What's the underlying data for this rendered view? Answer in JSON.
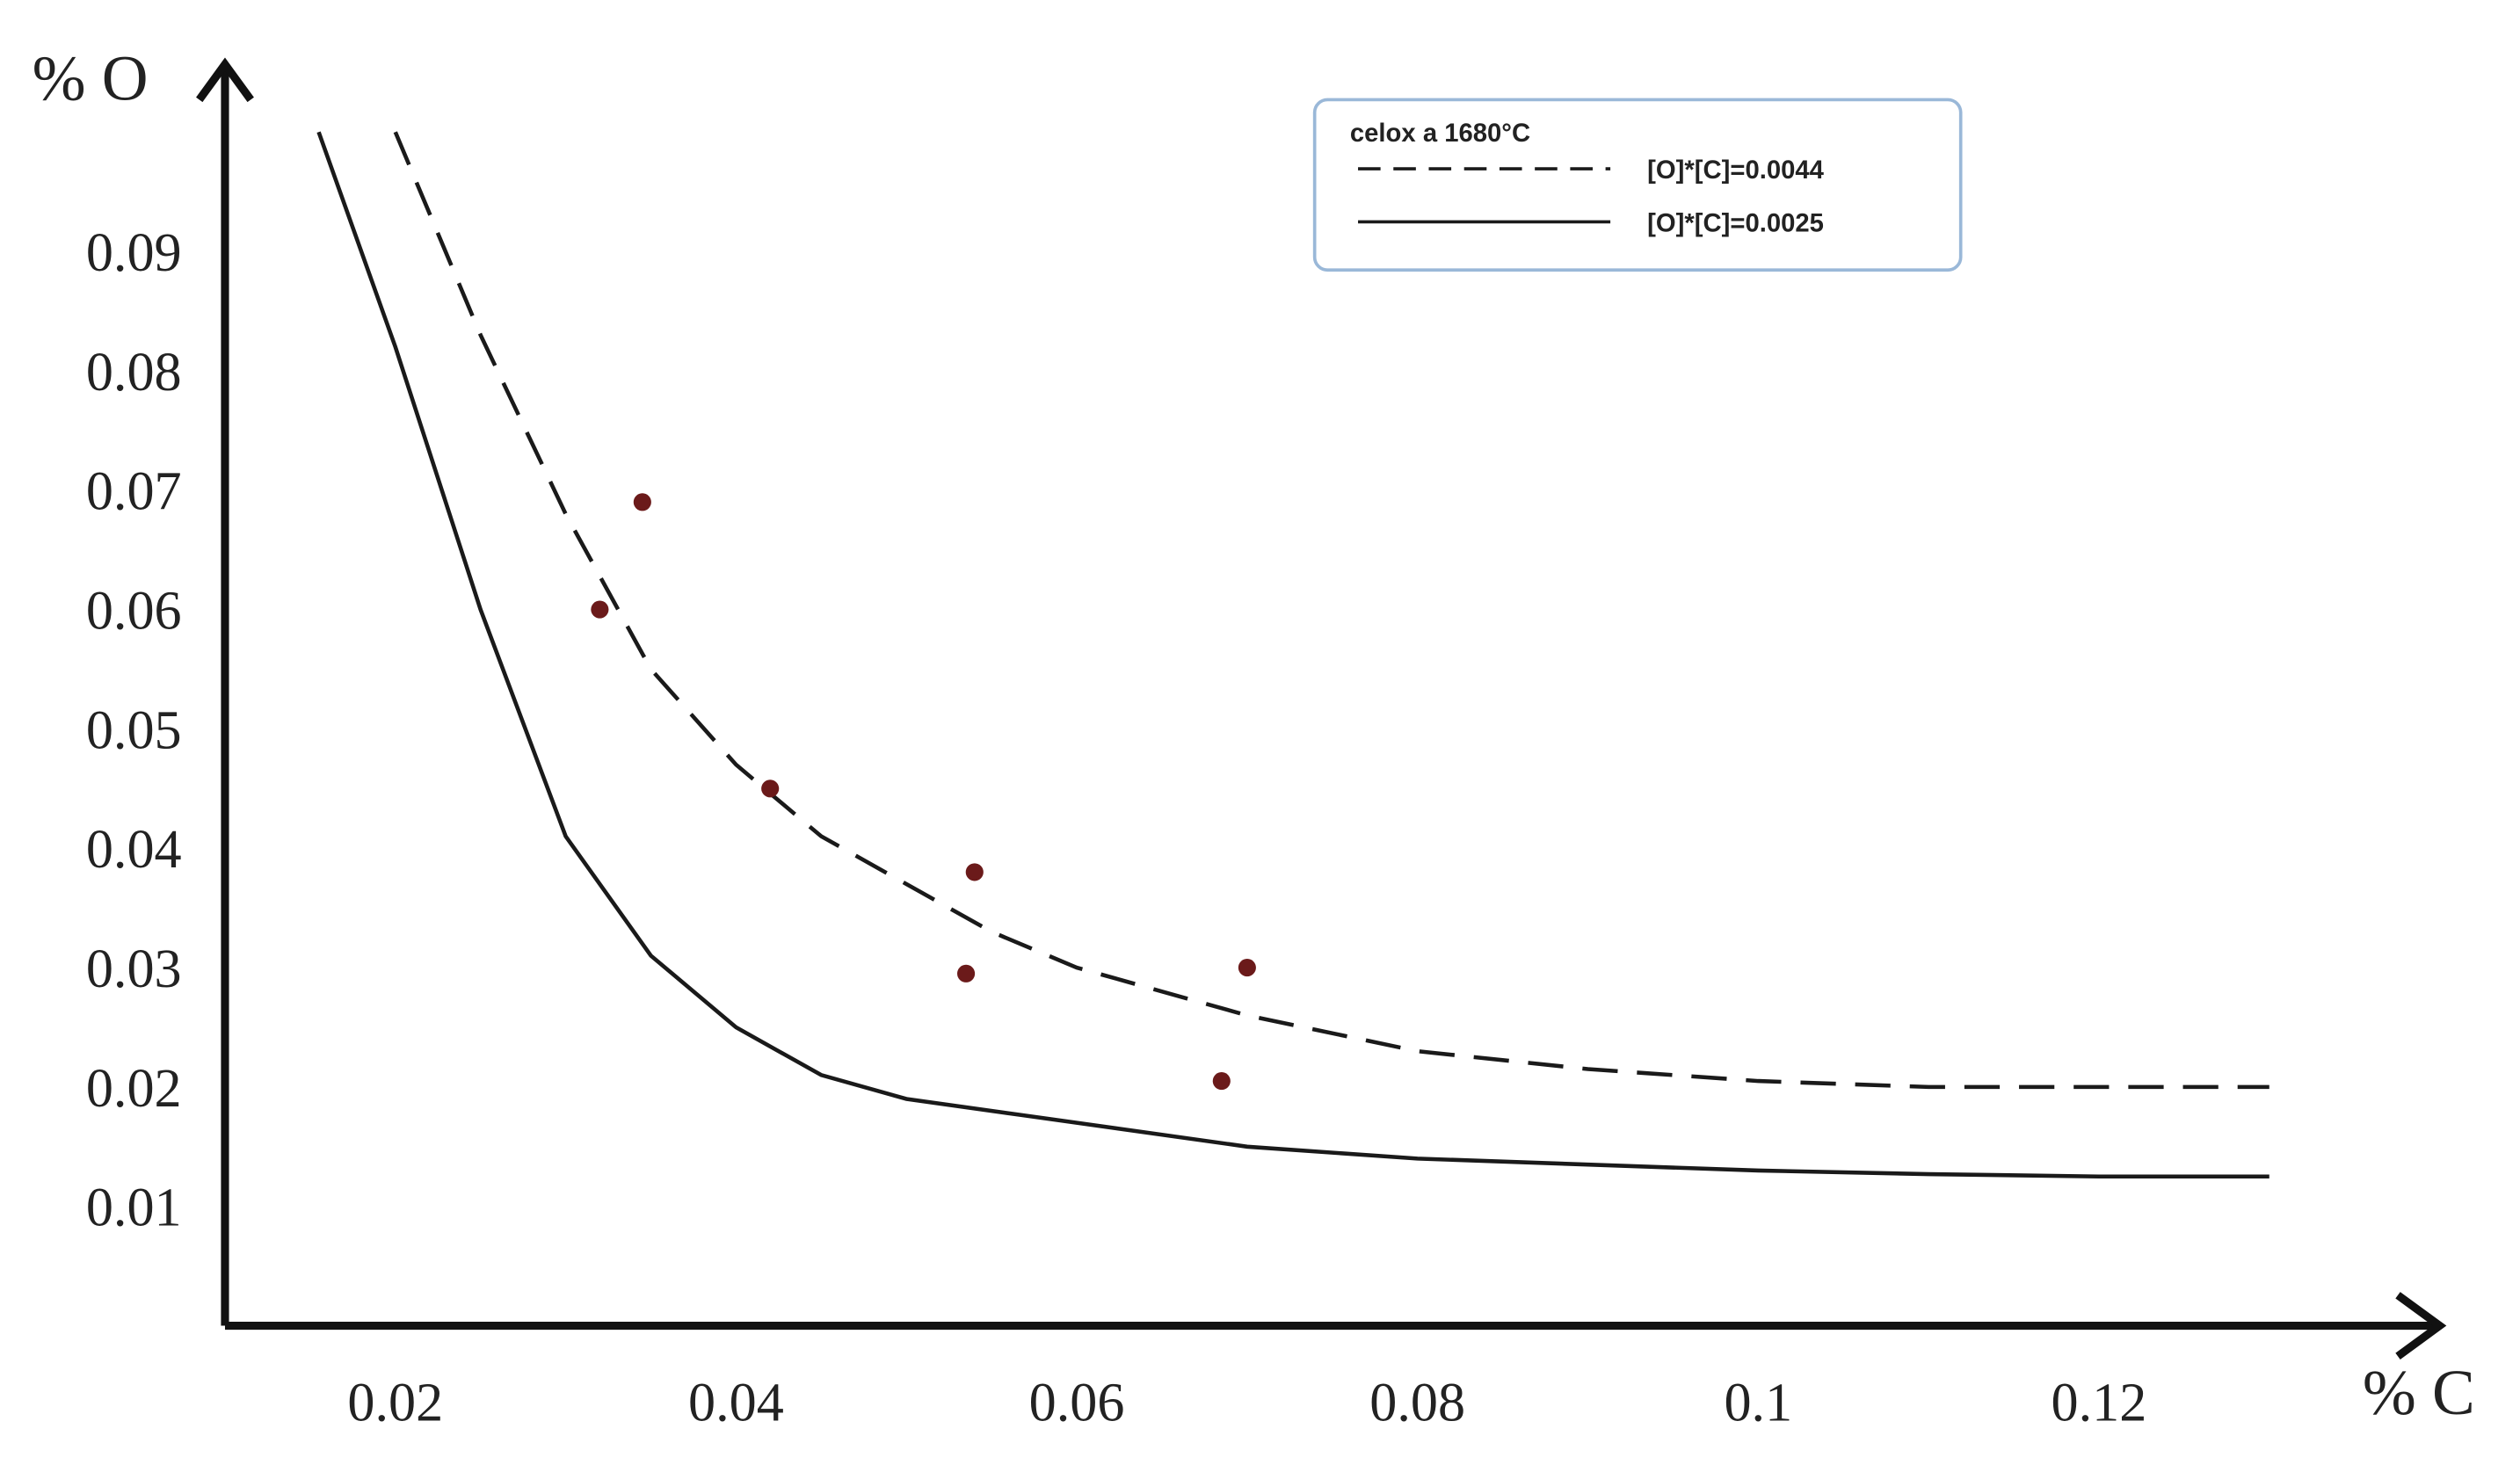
{
  "chart_data": {
    "type": "scatter",
    "xlabel": "% C",
    "ylabel": "% O",
    "xlim": [
      0.01,
      0.14
    ],
    "xticks": [
      0.02,
      0.04,
      0.06,
      0.08,
      0.1,
      0.12
    ],
    "ylim": [
      0,
      0.105
    ],
    "yticks": [
      0.01,
      0.02,
      0.03,
      0.04,
      0.05,
      0.06,
      0.07,
      0.08,
      0.09
    ],
    "grid": false,
    "legend": {
      "title": "celox a 1680°C",
      "position": "upper right"
    },
    "lines": [
      {
        "name": "[O]*[C]=0.0044",
        "style": "dashed",
        "color": "#1a1a1a",
        "x": [
          0.02,
          0.025,
          0.03,
          0.035,
          0.04,
          0.045,
          0.05,
          0.055,
          0.06,
          0.07,
          0.08,
          0.09,
          0.1,
          0.11,
          0.12,
          0.13
        ],
        "values": [
          0.1,
          0.083,
          0.068,
          0.055,
          0.047,
          0.041,
          0.037,
          0.033,
          0.03,
          0.026,
          0.023,
          0.0215,
          0.0205,
          0.02,
          0.02,
          0.02
        ]
      },
      {
        "name": "[O]*[C]=0.0025",
        "style": "solid",
        "color": "#1a1a1a",
        "x": [
          0.0155,
          0.02,
          0.025,
          0.03,
          0.035,
          0.04,
          0.045,
          0.05,
          0.06,
          0.07,
          0.08,
          0.09,
          0.1,
          0.11,
          0.12,
          0.13
        ],
        "values": [
          0.1,
          0.082,
          0.06,
          0.041,
          0.031,
          0.025,
          0.021,
          0.019,
          0.017,
          0.015,
          0.014,
          0.0135,
          0.013,
          0.0127,
          0.0125,
          0.0125
        ]
      }
    ],
    "points": {
      "color": "#6b1a1a",
      "x": [
        0.032,
        0.0345,
        0.042,
        0.054,
        0.0535,
        0.07,
        0.0685
      ],
      "values": [
        0.06,
        0.069,
        0.045,
        0.038,
        0.0295,
        0.03,
        0.0205
      ]
    }
  }
}
